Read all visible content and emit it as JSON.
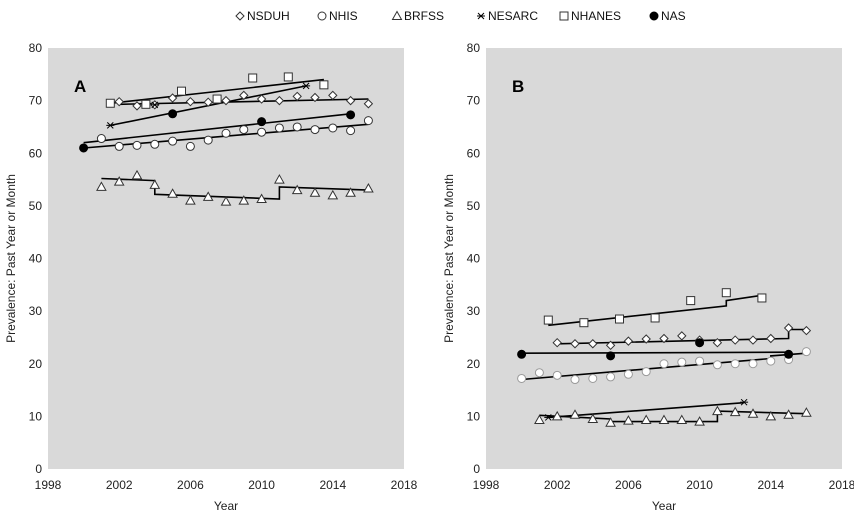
{
  "legend": [
    {
      "label": "NSDUH",
      "marker": "diamond"
    },
    {
      "label": "NHIS",
      "marker": "circle"
    },
    {
      "label": "BRFSS",
      "marker": "triangle"
    },
    {
      "label": "NESARC",
      "marker": "asterisk"
    },
    {
      "label": "NHANES",
      "marker": "square"
    },
    {
      "label": "NAS",
      "marker": "filled-circle"
    }
  ],
  "colors": {
    "plot_bg": "#d9d9d9",
    "marker_stroke": "#333333",
    "line": "#000000",
    "faded_marker": "#9a9a9a"
  },
  "chart_data": [
    {
      "panel": "A",
      "type": "scatter",
      "xlabel": "Year",
      "ylabel": "Prevalence: Past Year or Month",
      "xlim": [
        1998,
        2018
      ],
      "ylim": [
        0,
        80
      ],
      "xticks": [
        1998,
        2002,
        2006,
        2010,
        2014,
        2018
      ],
      "yticks": [
        0,
        10,
        20,
        30,
        40,
        50,
        60,
        70,
        80
      ],
      "grid": false,
      "legend_position": "top",
      "series": [
        {
          "name": "NSDUH",
          "marker": "diamond",
          "x": [
            2002,
            2003,
            2004,
            2005,
            2006,
            2007,
            2008,
            2009,
            2010,
            2011,
            2012,
            2013,
            2014,
            2015,
            2016
          ],
          "y": [
            69.8,
            69.0,
            69.2,
            70.5,
            69.8,
            69.7,
            70.0,
            71.0,
            70.3,
            70.0,
            70.8,
            70.6,
            71.0,
            70.0,
            69.4
          ]
        },
        {
          "name": "NHIS",
          "marker": "circle",
          "x": [
            2001,
            2002,
            2003,
            2004,
            2005,
            2006,
            2007,
            2008,
            2009,
            2010,
            2011,
            2012,
            2013,
            2014,
            2015,
            2016
          ],
          "y": [
            62.8,
            61.3,
            61.5,
            61.7,
            62.3,
            61.3,
            62.5,
            63.8,
            64.5,
            64.0,
            64.8,
            65.0,
            64.5,
            64.8,
            64.3,
            66.2
          ]
        },
        {
          "name": "BRFSS",
          "marker": "triangle",
          "x": [
            2001,
            2002,
            2003,
            2004,
            2005,
            2006,
            2007,
            2008,
            2009,
            2010,
            2011,
            2012,
            2013,
            2014,
            2015,
            2016
          ],
          "y": [
            53.6,
            54.6,
            55.8,
            54.0,
            52.3,
            51.0,
            51.7,
            50.8,
            51.0,
            51.3,
            55.0,
            53.0,
            52.5,
            52.0,
            52.5,
            53.3
          ]
        },
        {
          "name": "NESARC",
          "marker": "asterisk",
          "x": [
            2001.5,
            2004,
            2012.5
          ],
          "y": [
            65.3,
            69.2,
            72.8
          ]
        },
        {
          "name": "NHANES",
          "marker": "square",
          "x": [
            2001.5,
            2003.5,
            2005.5,
            2007.5,
            2009.5,
            2011.5,
            2013.5
          ],
          "y": [
            69.5,
            69.3,
            71.8,
            70.3,
            74.3,
            74.5,
            73.0
          ]
        },
        {
          "name": "NAS",
          "marker": "filled-circle",
          "x": [
            2000,
            2005,
            2010,
            2015
          ],
          "y": [
            61.0,
            67.5,
            66.0,
            67.3
          ]
        }
      ],
      "trend_lines": [
        {
          "series": "NHANES",
          "points": [
            [
              2001.5,
              69.5
            ],
            [
              2013.5,
              74.0
            ]
          ]
        },
        {
          "series": "NSDUH",
          "points": [
            [
              2002,
              69.3
            ],
            [
              2016,
              70.3
            ]
          ]
        },
        {
          "series": "NESARC",
          "points": [
            [
              2001.5,
              65.3
            ],
            [
              2012.5,
              72.8
            ]
          ]
        },
        {
          "series": "NAS",
          "points": [
            [
              2000,
              62.0
            ],
            [
              2015,
              67.5
            ]
          ]
        },
        {
          "series": "NHIS",
          "points": [
            [
              2000,
              61.0
            ],
            [
              2016,
              65.5
            ]
          ]
        },
        {
          "series": "BRFSS",
          "points": [
            [
              2001,
              55.2
            ],
            [
              2004,
              54.8
            ],
            [
              2004,
              52.2
            ],
            [
              2011,
              51.3
            ],
            [
              2011,
              53.6
            ],
            [
              2016,
              53.0
            ]
          ]
        }
      ]
    },
    {
      "panel": "B",
      "type": "scatter",
      "xlabel": "Year",
      "ylabel": "Prevalence: Past Year or Month",
      "xlim": [
        1998,
        2018
      ],
      "ylim": [
        0,
        80
      ],
      "xticks": [
        1998,
        2002,
        2006,
        2010,
        2014,
        2018
      ],
      "yticks": [
        0,
        10,
        20,
        30,
        40,
        50,
        60,
        70,
        80
      ],
      "grid": false,
      "series": [
        {
          "name": "NSDUH",
          "marker": "diamond",
          "x": [
            2002,
            2003,
            2004,
            2005,
            2006,
            2007,
            2008,
            2009,
            2010,
            2011,
            2012,
            2013,
            2014,
            2015,
            2016
          ],
          "y": [
            24.0,
            23.8,
            23.8,
            23.5,
            24.3,
            24.7,
            24.8,
            25.3,
            24.5,
            24.0,
            24.5,
            24.5,
            24.8,
            26.8,
            26.3
          ]
        },
        {
          "name": "NHIS",
          "marker": "circle",
          "faded": true,
          "x": [
            2000,
            2001,
            2002,
            2003,
            2004,
            2005,
            2006,
            2007,
            2008,
            2009,
            2010,
            2011,
            2012,
            2013,
            2014,
            2015,
            2016
          ],
          "y": [
            17.2,
            18.3,
            17.8,
            17.0,
            17.2,
            17.5,
            18.0,
            18.5,
            20.0,
            20.3,
            20.5,
            19.8,
            20.0,
            20.0,
            20.5,
            20.8,
            22.3
          ]
        },
        {
          "name": "BRFSS",
          "marker": "triangle",
          "x": [
            2001,
            2002,
            2003,
            2004,
            2005,
            2006,
            2007,
            2008,
            2009,
            2010,
            2011,
            2012,
            2013,
            2014,
            2015,
            2016
          ],
          "y": [
            9.3,
            10.0,
            10.3,
            9.5,
            8.8,
            9.2,
            9.3,
            9.3,
            9.3,
            9.0,
            11.0,
            10.8,
            10.5,
            10.0,
            10.3,
            10.7
          ]
        },
        {
          "name": "NESARC",
          "marker": "asterisk",
          "x": [
            2001.5,
            2012.5
          ],
          "y": [
            9.8,
            12.7
          ]
        },
        {
          "name": "NHANES",
          "marker": "square",
          "x": [
            2001.5,
            2003.5,
            2005.5,
            2007.5,
            2009.5,
            2011.5,
            2013.5
          ],
          "y": [
            28.3,
            27.8,
            28.5,
            28.7,
            32.0,
            33.5,
            32.5
          ]
        },
        {
          "name": "NAS",
          "marker": "filled-circle",
          "x": [
            2000,
            2005,
            2010,
            2015
          ],
          "y": [
            21.8,
            21.5,
            24.0,
            21.8
          ]
        }
      ],
      "trend_lines": [
        {
          "series": "NHANES",
          "points": [
            [
              2001.5,
              27.3
            ],
            [
              2011.5,
              31.0
            ],
            [
              2011.5,
              32.0
            ],
            [
              2013.5,
              33.0
            ]
          ]
        },
        {
          "series": "NSDUH",
          "points": [
            [
              2002,
              23.8
            ],
            [
              2015,
              24.8
            ],
            [
              2015,
              26.5
            ],
            [
              2016,
              26.5
            ]
          ]
        },
        {
          "series": "NAS",
          "points": [
            [
              2000,
              22.0
            ],
            [
              2015,
              22.2
            ]
          ]
        },
        {
          "series": "NHIS",
          "points": [
            [
              2000,
              17.0
            ],
            [
              2014,
              21.0
            ],
            [
              2014,
              21.5
            ],
            [
              2016,
              22.0
            ]
          ]
        },
        {
          "series": "NESARC",
          "points": [
            [
              2001.5,
              9.8
            ],
            [
              2012.5,
              12.6
            ]
          ]
        },
        {
          "series": "BRFSS",
          "points": [
            [
              2001,
              10.2
            ],
            [
              2005,
              9.5
            ],
            [
              2005,
              9.0
            ],
            [
              2011,
              9.0
            ],
            [
              2011,
              11.0
            ],
            [
              2016,
              10.5
            ]
          ]
        }
      ]
    }
  ]
}
